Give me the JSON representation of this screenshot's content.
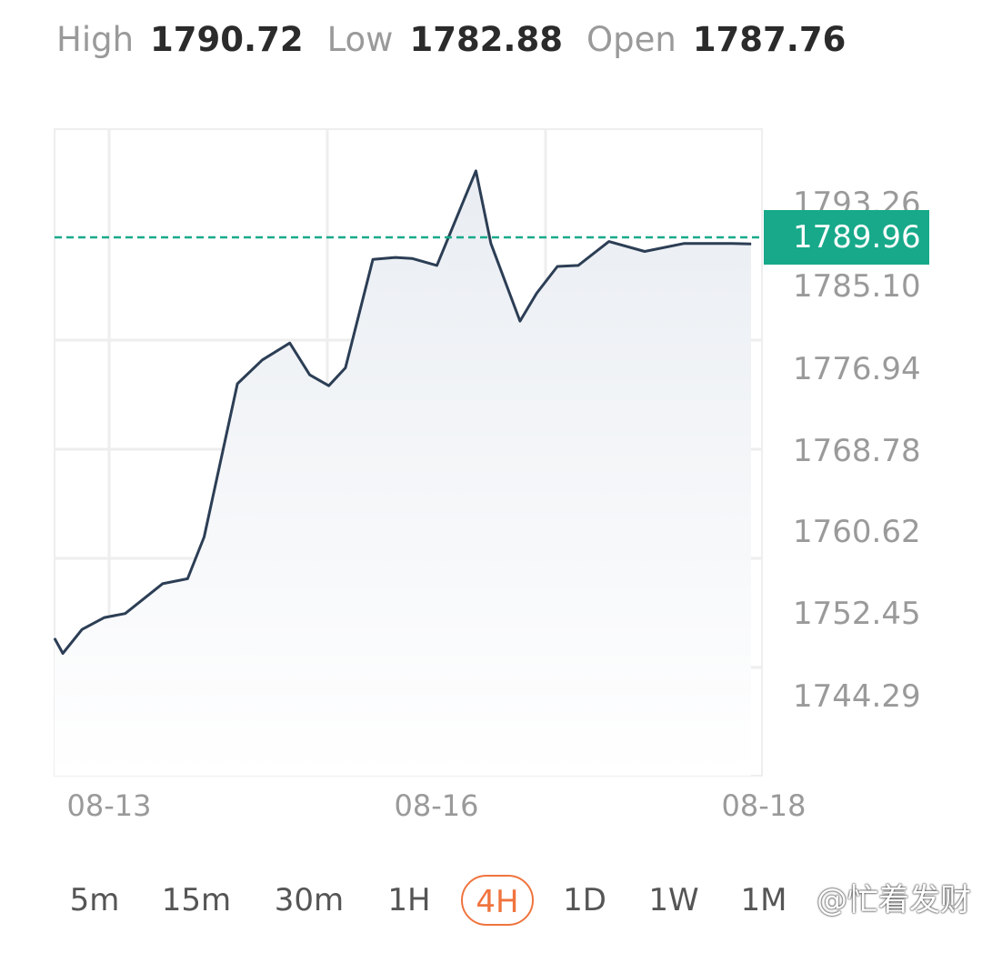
{
  "stats": {
    "high_label": "High",
    "high_value": "1790.72",
    "low_label": "Low",
    "low_value": "1782.88",
    "open_label": "Open",
    "open_value": "1787.76"
  },
  "chart_data": {
    "type": "area",
    "x": [
      0.0,
      0.1,
      0.33,
      0.6,
      0.85,
      1.3,
      1.6,
      1.8,
      2.2,
      2.5,
      2.83,
      3.07,
      3.3,
      3.5,
      3.83,
      4.1,
      4.3,
      4.6,
      5.07,
      5.25,
      5.6,
      5.8,
      6.05,
      6.3,
      6.67,
      7.1,
      7.57,
      7.8,
      8.15,
      8.38
    ],
    "y": [
      1750.3,
      1748.8,
      1751.2,
      1752.4,
      1752.8,
      1755.8,
      1756.3,
      1760.5,
      1775.9,
      1778.3,
      1780.0,
      1776.8,
      1775.7,
      1777.5,
      1788.4,
      1788.6,
      1788.5,
      1787.8,
      1797.3,
      1790.0,
      1782.2,
      1785.0,
      1787.7,
      1787.8,
      1790.2,
      1789.2,
      1790.0,
      1790.0,
      1790.0,
      1789.96
    ],
    "x_ticks": [
      {
        "x": 0.65,
        "label": "08-13"
      },
      {
        "x": 3.27,
        "label": "08-16"
      },
      {
        "x": 5.87,
        "label": "08-18"
      }
    ],
    "y_ticks": [
      "1793.26",
      "1785.10",
      "1776.94",
      "1768.78",
      "1760.62",
      "1752.45",
      "1744.29"
    ],
    "ylim": [
      1736.5,
      1801.5
    ],
    "xlim": [
      0,
      8.5
    ],
    "current_price": "1789.96",
    "grid": true,
    "colors": {
      "line": "#2c3e55",
      "fill": "#eef1f5",
      "current": "#17a98a",
      "grid": "#eeeeee",
      "tick": "#9a9a9a"
    }
  },
  "timeframes": {
    "items": [
      "5m",
      "15m",
      "30m",
      "1H",
      "4H",
      "1D",
      "1W",
      "1M"
    ],
    "selected": "4H"
  },
  "watermark": "@忙着发财"
}
